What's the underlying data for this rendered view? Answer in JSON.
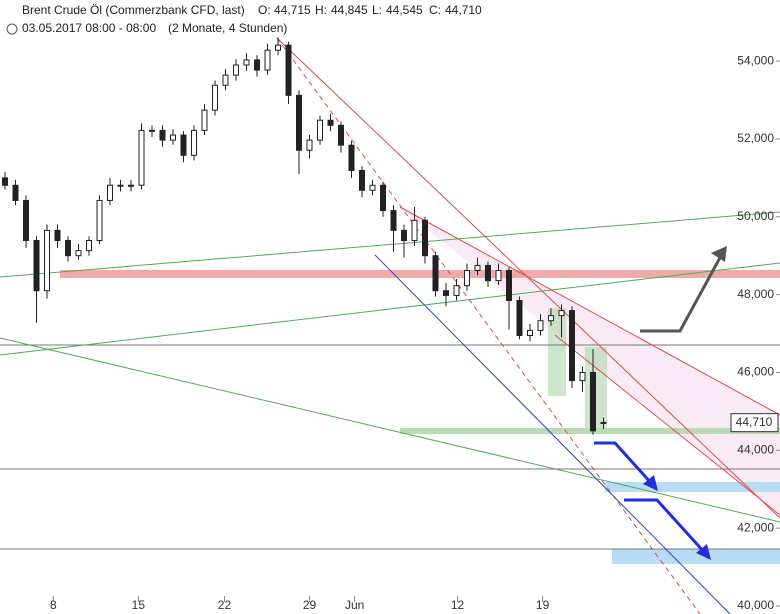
{
  "header": {
    "title": "Brent Crude Öl (Commerzbank CFD, last)",
    "ohlc": [
      {
        "label": "O:",
        "value": "44,715"
      },
      {
        "label": "H:",
        "value": "44,845"
      },
      {
        "label": "L:",
        "value": "44,545"
      },
      {
        "label": "C:",
        "value": "44,710"
      }
    ],
    "date": "03.05.2017 08:00 - 08:00",
    "period": "(2 Monate, 4 Stunden)"
  },
  "chart_data": {
    "type": "candlestick",
    "color": "#222222",
    "x": [
      0,
      1,
      2,
      3,
      4,
      5,
      6,
      7,
      8,
      9,
      10,
      11,
      12,
      13,
      14,
      15,
      16,
      17,
      18,
      19,
      20,
      21,
      22,
      23,
      24,
      25,
      26,
      27,
      28,
      29,
      30,
      31,
      32,
      33,
      34,
      35,
      36,
      37,
      38,
      39,
      40,
      41,
      42,
      43,
      44,
      45,
      46,
      47,
      48,
      49,
      50,
      51,
      52,
      53,
      54,
      55,
      56,
      57
    ],
    "open": [
      51000,
      50810,
      50420,
      49390,
      48100,
      49650,
      49390,
      49000,
      49130,
      49390,
      50420,
      50810,
      50810,
      50810,
      52220,
      52220,
      51970,
      52100,
      51580,
      52220,
      52740,
      53380,
      53640,
      53900,
      54030,
      53770,
      54280,
      54410,
      53120,
      51710,
      51970,
      52480,
      52350,
      51840,
      51190,
      50680,
      50810,
      50160,
      49650,
      49390,
      49910,
      49000,
      48100,
      47980,
      48230,
      48620,
      48750,
      48360,
      48620,
      47850,
      46950,
      47080,
      47330,
      47460,
      47590,
      45790,
      46000,
      44715
    ],
    "high": [
      51150,
      50950,
      50550,
      49500,
      49800,
      49800,
      49500,
      49300,
      49500,
      50550,
      51000,
      50950,
      50950,
      52400,
      52350,
      52350,
      52250,
      52200,
      52350,
      52900,
      53500,
      53800,
      54050,
      54200,
      54150,
      54450,
      54600,
      54500,
      53250,
      52100,
      52600,
      52650,
      52450,
      51950,
      51300,
      50950,
      50900,
      50300,
      49800,
      50250,
      50000,
      49100,
      48300,
      48400,
      48800,
      48950,
      48850,
      48800,
      48700,
      47950,
      47250,
      47500,
      47650,
      47750,
      47700,
      46150,
      46600,
      44845
    ],
    "low": [
      50700,
      50300,
      49200,
      47280,
      47900,
      49200,
      48850,
      48900,
      49000,
      49300,
      50300,
      50650,
      50650,
      50700,
      52050,
      51800,
      51850,
      51400,
      51450,
      52100,
      52600,
      53250,
      53500,
      53750,
      53600,
      53650,
      54150,
      52900,
      51100,
      51500,
      51850,
      52200,
      51650,
      51000,
      50500,
      50550,
      50000,
      49100,
      48950,
      49250,
      48800,
      47950,
      47700,
      47850,
      48100,
      48500,
      48200,
      48250,
      47100,
      46850,
      46800,
      46950,
      47200,
      46900,
      45600,
      45500,
      44400,
      44545
    ],
    "close": [
      50810,
      50420,
      49390,
      48100,
      49650,
      49390,
      49000,
      49130,
      49390,
      50420,
      50810,
      50810,
      50810,
      52220,
      52220,
      51970,
      52100,
      51580,
      52220,
      52740,
      53380,
      53640,
      53900,
      54030,
      53770,
      54280,
      54410,
      53120,
      51710,
      51970,
      52480,
      52350,
      51840,
      51190,
      50680,
      50810,
      50160,
      49650,
      49390,
      49910,
      49000,
      48100,
      47980,
      48230,
      48620,
      48750,
      48360,
      48620,
      47850,
      46950,
      47080,
      47330,
      47460,
      47590,
      45790,
      46000,
      44500,
      44710
    ],
    "xlim": [
      -0.476,
      73.81
    ],
    "ylim": [
      39794,
      55570
    ],
    "xticks": [
      {
        "value": 4.6,
        "label": "8"
      },
      {
        "value": 12.7,
        "label": "15"
      },
      {
        "value": 20.9,
        "label": "22"
      },
      {
        "value": 29.0,
        "label": "29"
      },
      {
        "value": 33.3,
        "label": "Jun"
      },
      {
        "value": 43.1,
        "label": "12"
      },
      {
        "value": 51.2,
        "label": "19"
      }
    ],
    "yticks": [
      {
        "value": 40000,
        "label": "40,000"
      },
      {
        "value": 42000,
        "label": "42,000"
      },
      {
        "value": 44000,
        "label": "44,000"
      },
      {
        "value": 46000,
        "label": "46,000"
      },
      {
        "value": 48000,
        "label": "48,000"
      },
      {
        "value": 50000,
        "label": "50,000"
      },
      {
        "value": 52000,
        "label": "52,000"
      },
      {
        "value": 54000,
        "label": "54,000"
      }
    ],
    "last_price": {
      "value": 44710,
      "label": "44,710"
    }
  }
}
